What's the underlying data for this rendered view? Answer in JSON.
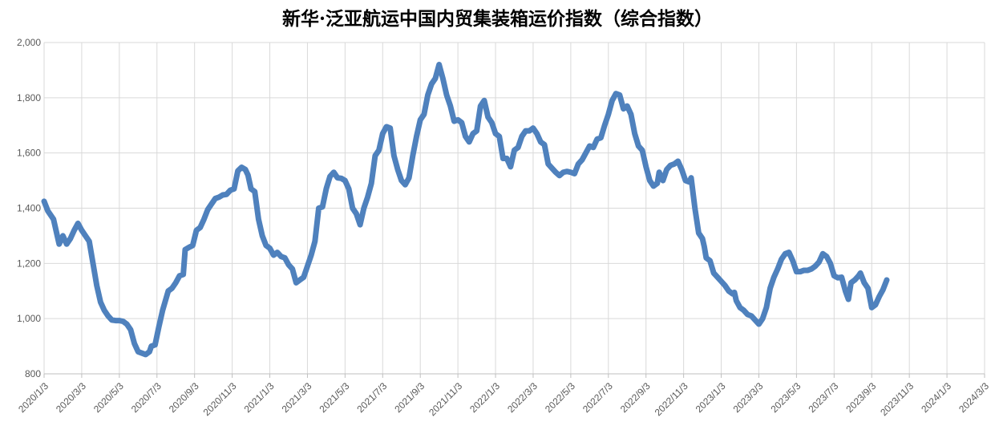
{
  "chart_data": {
    "type": "line",
    "title": "新华·泛亚航运中国内贸集装箱运价指数（综合指数）",
    "xlabel": "",
    "ylabel": "",
    "ylim": [
      800,
      2000
    ],
    "yticks": [
      800,
      1000,
      1200,
      1400,
      1600,
      1800,
      2000
    ],
    "grid": true,
    "legend": "none",
    "colors": {
      "line": "#4F81BD",
      "grid": "#D9D9D9",
      "axis": "#BFBFBF"
    },
    "xtick_labels": [
      "2020/1/3",
      "2020/3/3",
      "2020/5/3",
      "2020/7/3",
      "2020/9/3",
      "2020/11/3",
      "2021/1/3",
      "2021/3/3",
      "2021/5/3",
      "2021/7/3",
      "2021/9/3",
      "2021/11/3",
      "2022/1/3",
      "2022/3/3",
      "2022/5/3",
      "2022/7/3",
      "2022/9/3",
      "2022/11/3",
      "2023/1/3",
      "2023/3/3",
      "2023/5/3",
      "2023/7/3",
      "2023/9/3",
      "2023/11/3",
      "2024/1/3",
      "2024/3/3"
    ],
    "series": [
      {
        "points": [
          [
            0.0,
            1425
          ],
          [
            0.1,
            1390
          ],
          [
            0.25,
            1360
          ],
          [
            0.35,
            1300
          ],
          [
            0.4,
            1270
          ],
          [
            0.5,
            1300
          ],
          [
            0.6,
            1270
          ],
          [
            0.7,
            1290
          ],
          [
            0.8,
            1320
          ],
          [
            0.9,
            1345
          ],
          [
            1.0,
            1320
          ],
          [
            1.1,
            1300
          ],
          [
            1.2,
            1280
          ],
          [
            1.3,
            1200
          ],
          [
            1.4,
            1120
          ],
          [
            1.5,
            1060
          ],
          [
            1.6,
            1030
          ],
          [
            1.7,
            1010
          ],
          [
            1.8,
            995
          ],
          [
            1.9,
            993
          ],
          [
            2.0,
            993
          ],
          [
            2.1,
            990
          ],
          [
            2.2,
            980
          ],
          [
            2.3,
            960
          ],
          [
            2.4,
            910
          ],
          [
            2.5,
            880
          ],
          [
            2.6,
            875
          ],
          [
            2.7,
            870
          ],
          [
            2.8,
            880
          ],
          [
            2.85,
            900
          ],
          [
            2.95,
            905
          ],
          [
            3.05,
            970
          ],
          [
            3.15,
            1030
          ],
          [
            3.3,
            1100
          ],
          [
            3.4,
            1110
          ],
          [
            3.5,
            1130
          ],
          [
            3.6,
            1155
          ],
          [
            3.7,
            1160
          ],
          [
            3.75,
            1250
          ],
          [
            3.85,
            1258
          ],
          [
            3.95,
            1265
          ],
          [
            4.05,
            1320
          ],
          [
            4.15,
            1330
          ],
          [
            4.25,
            1360
          ],
          [
            4.35,
            1395
          ],
          [
            4.45,
            1415
          ],
          [
            4.55,
            1435
          ],
          [
            4.65,
            1440
          ],
          [
            4.75,
            1448
          ],
          [
            4.85,
            1450
          ],
          [
            4.95,
            1465
          ],
          [
            5.05,
            1470
          ],
          [
            5.15,
            1535
          ],
          [
            5.25,
            1548
          ],
          [
            5.35,
            1540
          ],
          [
            5.42,
            1520
          ],
          [
            5.5,
            1470
          ],
          [
            5.6,
            1460
          ],
          [
            5.7,
            1360
          ],
          [
            5.8,
            1300
          ],
          [
            5.9,
            1265
          ],
          [
            6.0,
            1255
          ],
          [
            6.1,
            1230
          ],
          [
            6.2,
            1240
          ],
          [
            6.3,
            1225
          ],
          [
            6.4,
            1220
          ],
          [
            6.5,
            1195
          ],
          [
            6.6,
            1180
          ],
          [
            6.7,
            1130
          ],
          [
            6.8,
            1140
          ],
          [
            6.9,
            1150
          ],
          [
            7.0,
            1190
          ],
          [
            7.1,
            1230
          ],
          [
            7.2,
            1280
          ],
          [
            7.3,
            1400
          ],
          [
            7.4,
            1405
          ],
          [
            7.5,
            1470
          ],
          [
            7.6,
            1515
          ],
          [
            7.7,
            1530
          ],
          [
            7.8,
            1510
          ],
          [
            7.9,
            1508
          ],
          [
            8.0,
            1500
          ],
          [
            8.1,
            1470
          ],
          [
            8.2,
            1400
          ],
          [
            8.3,
            1380
          ],
          [
            8.4,
            1340
          ],
          [
            8.5,
            1400
          ],
          [
            8.6,
            1440
          ],
          [
            8.7,
            1490
          ],
          [
            8.8,
            1590
          ],
          [
            8.9,
            1610
          ],
          [
            9.0,
            1670
          ],
          [
            9.1,
            1695
          ],
          [
            9.2,
            1690
          ],
          [
            9.3,
            1590
          ],
          [
            9.4,
            1540
          ],
          [
            9.5,
            1500
          ],
          [
            9.6,
            1485
          ],
          [
            9.7,
            1510
          ],
          [
            9.8,
            1590
          ],
          [
            9.9,
            1660
          ],
          [
            10.0,
            1720
          ],
          [
            10.1,
            1740
          ],
          [
            10.2,
            1810
          ],
          [
            10.3,
            1850
          ],
          [
            10.4,
            1870
          ],
          [
            10.5,
            1920
          ],
          [
            10.6,
            1870
          ],
          [
            10.7,
            1810
          ],
          [
            10.8,
            1770
          ],
          [
            10.9,
            1715
          ],
          [
            11.0,
            1720
          ],
          [
            11.1,
            1710
          ],
          [
            11.2,
            1660
          ],
          [
            11.3,
            1640
          ],
          [
            11.4,
            1670
          ],
          [
            11.5,
            1680
          ],
          [
            11.6,
            1770
          ],
          [
            11.7,
            1790
          ],
          [
            11.8,
            1730
          ],
          [
            11.9,
            1710
          ],
          [
            12.0,
            1670
          ],
          [
            12.1,
            1660
          ],
          [
            12.2,
            1580
          ],
          [
            12.3,
            1580
          ],
          [
            12.4,
            1550
          ],
          [
            12.5,
            1610
          ],
          [
            12.6,
            1620
          ],
          [
            12.7,
            1660
          ],
          [
            12.8,
            1680
          ],
          [
            12.9,
            1680
          ],
          [
            13.0,
            1690
          ],
          [
            13.1,
            1670
          ],
          [
            13.2,
            1640
          ],
          [
            13.3,
            1630
          ],
          [
            13.4,
            1560
          ],
          [
            13.5,
            1545
          ],
          [
            13.6,
            1530
          ],
          [
            13.7,
            1518
          ],
          [
            13.8,
            1530
          ],
          [
            13.9,
            1533
          ],
          [
            14.0,
            1530
          ],
          [
            14.1,
            1525
          ],
          [
            14.2,
            1560
          ],
          [
            14.3,
            1575
          ],
          [
            14.4,
            1600
          ],
          [
            14.5,
            1625
          ],
          [
            14.6,
            1620
          ],
          [
            14.7,
            1650
          ],
          [
            14.8,
            1655
          ],
          [
            14.9,
            1700
          ],
          [
            15.0,
            1740
          ],
          [
            15.1,
            1790
          ],
          [
            15.2,
            1815
          ],
          [
            15.3,
            1810
          ],
          [
            15.4,
            1760
          ],
          [
            15.5,
            1770
          ],
          [
            15.6,
            1740
          ],
          [
            15.7,
            1670
          ],
          [
            15.8,
            1625
          ],
          [
            15.9,
            1610
          ],
          [
            16.0,
            1550
          ],
          [
            16.1,
            1500
          ],
          [
            16.2,
            1480
          ],
          [
            16.3,
            1490
          ],
          [
            16.35,
            1530
          ],
          [
            16.45,
            1500
          ],
          [
            16.55,
            1540
          ],
          [
            16.65,
            1555
          ],
          [
            16.75,
            1560
          ],
          [
            16.85,
            1570
          ],
          [
            16.95,
            1540
          ],
          [
            17.05,
            1500
          ],
          [
            17.15,
            1495
          ],
          [
            17.2,
            1510
          ],
          [
            17.3,
            1400
          ],
          [
            17.4,
            1310
          ],
          [
            17.5,
            1290
          ],
          [
            17.55,
            1260
          ],
          [
            17.6,
            1220
          ],
          [
            17.7,
            1210
          ],
          [
            17.8,
            1165
          ],
          [
            17.9,
            1150
          ],
          [
            18.0,
            1135
          ],
          [
            18.1,
            1120
          ],
          [
            18.2,
            1100
          ],
          [
            18.3,
            1090
          ],
          [
            18.35,
            1095
          ],
          [
            18.4,
            1065
          ],
          [
            18.5,
            1040
          ],
          [
            18.6,
            1030
          ],
          [
            18.7,
            1015
          ],
          [
            18.8,
            1010
          ],
          [
            18.9,
            995
          ],
          [
            19.0,
            980
          ],
          [
            19.1,
            1000
          ],
          [
            19.2,
            1040
          ],
          [
            19.3,
            1110
          ],
          [
            19.4,
            1150
          ],
          [
            19.5,
            1180
          ],
          [
            19.6,
            1215
          ],
          [
            19.7,
            1235
          ],
          [
            19.8,
            1240
          ],
          [
            19.9,
            1210
          ],
          [
            20.0,
            1170
          ],
          [
            20.1,
            1170
          ],
          [
            20.2,
            1175
          ],
          [
            20.3,
            1175
          ],
          [
            20.4,
            1180
          ],
          [
            20.5,
            1190
          ],
          [
            20.6,
            1205
          ],
          [
            20.7,
            1235
          ],
          [
            20.8,
            1225
          ],
          [
            20.9,
            1200
          ],
          [
            21.0,
            1155
          ],
          [
            21.1,
            1148
          ],
          [
            21.2,
            1150
          ],
          [
            21.3,
            1100
          ],
          [
            21.38,
            1070
          ],
          [
            21.45,
            1130
          ],
          [
            21.55,
            1140
          ],
          [
            21.65,
            1155
          ],
          [
            21.7,
            1165
          ],
          [
            21.8,
            1130
          ],
          [
            21.9,
            1110
          ],
          [
            22.0,
            1040
          ],
          [
            22.1,
            1050
          ],
          [
            22.2,
            1080
          ],
          [
            22.3,
            1105
          ],
          [
            22.4,
            1140
          ]
        ]
      }
    ]
  }
}
